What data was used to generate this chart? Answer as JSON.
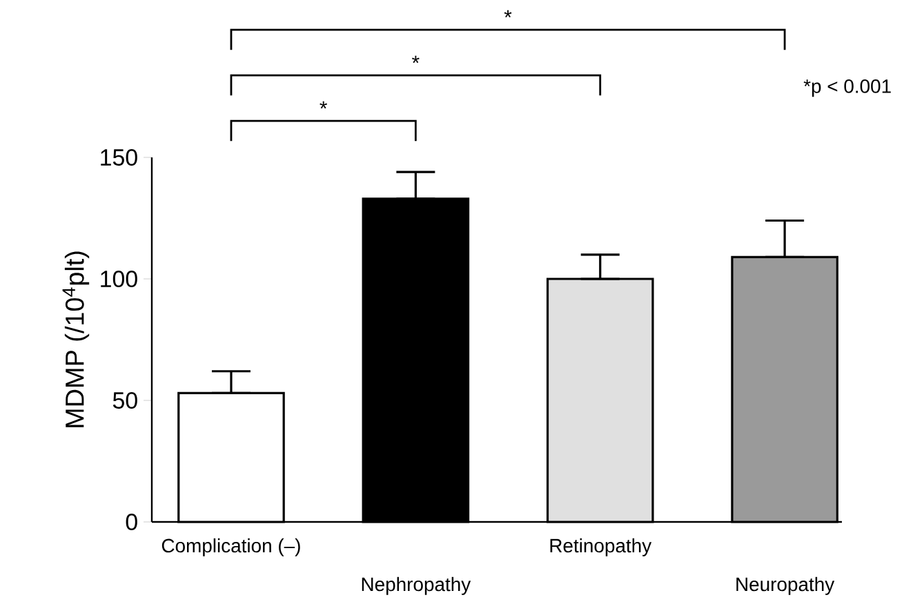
{
  "chart_data": {
    "type": "bar",
    "ylabel": "MDMP (/10$^{4}$plt)",
    "categories": [
      "Complication (–)",
      "Nephropathy",
      "Retinopathy",
      "Neuropathy"
    ],
    "values": [
      53,
      133,
      100,
      109
    ],
    "colors": [
      "#ffffff",
      "#000000",
      "#e0e0e0",
      "#9a9a9a"
    ],
    "errors": [
      [
        53,
        62
      ],
      [
        133,
        144
      ],
      [
        100,
        110
      ],
      [
        109,
        124
      ]
    ],
    "ylim": [
      0,
      150
    ],
    "yticks": [
      0,
      50,
      100,
      150
    ],
    "grid": false,
    "annotations": [
      "*",
      "*",
      "*",
      "*p < 0.001"
    ]
  }
}
